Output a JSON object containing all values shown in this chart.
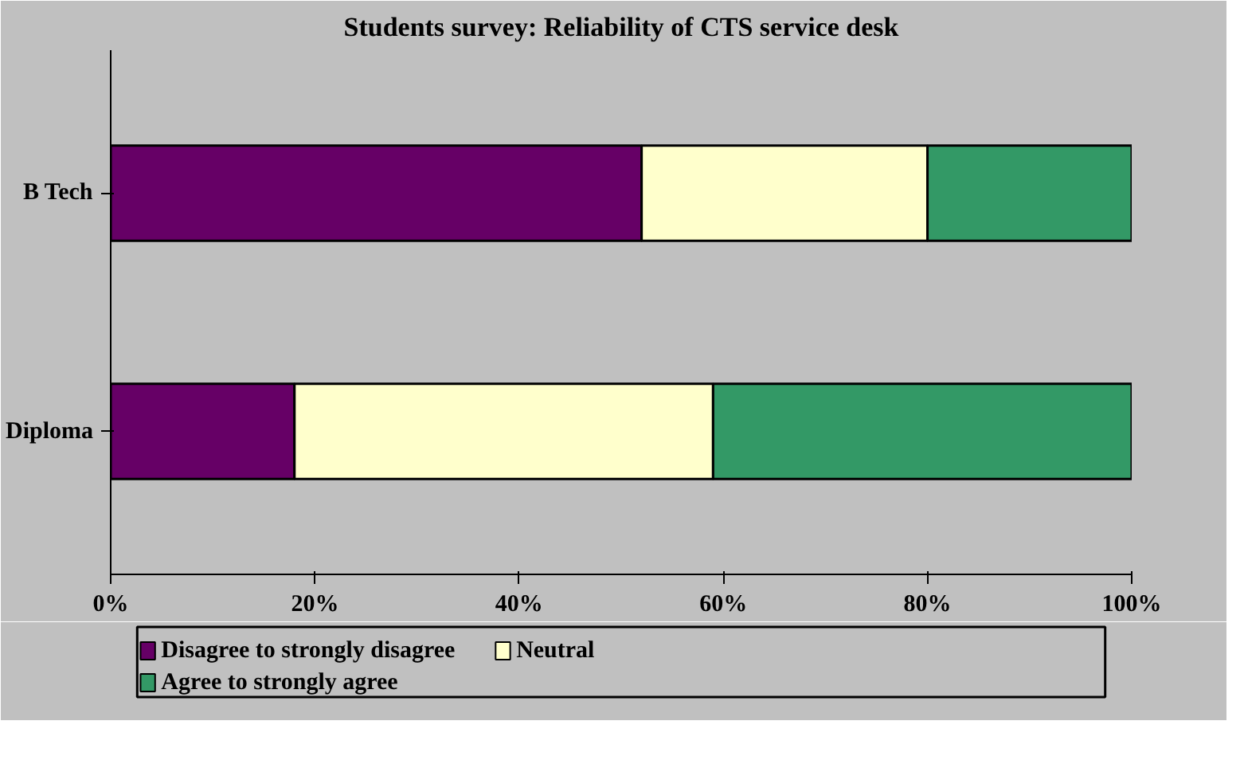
{
  "chart_data": {
    "type": "bar",
    "orientation": "horizontal",
    "stacked": true,
    "title": "Students survey: Reliability of CTS service desk",
    "categories": [
      "B Tech",
      "Diploma"
    ],
    "series": [
      {
        "name": "Disagree to strongly disagree",
        "color": "#660066",
        "values": [
          52,
          18
        ]
      },
      {
        "name": "Neutral",
        "color": "#ffffcc",
        "values": [
          28,
          41
        ]
      },
      {
        "name": "Agree to strongly agree",
        "color": "#339966",
        "values": [
          20,
          41
        ]
      }
    ],
    "xlim": [
      0,
      100
    ],
    "xticks": [
      {
        "value": 0,
        "label": "0%"
      },
      {
        "value": 20,
        "label": "20%"
      },
      {
        "value": 40,
        "label": "40%"
      },
      {
        "value": 60,
        "label": "60%"
      },
      {
        "value": 80,
        "label": "80%"
      },
      {
        "value": 100,
        "label": "100%"
      }
    ],
    "grid": false,
    "legend": "bottom"
  }
}
